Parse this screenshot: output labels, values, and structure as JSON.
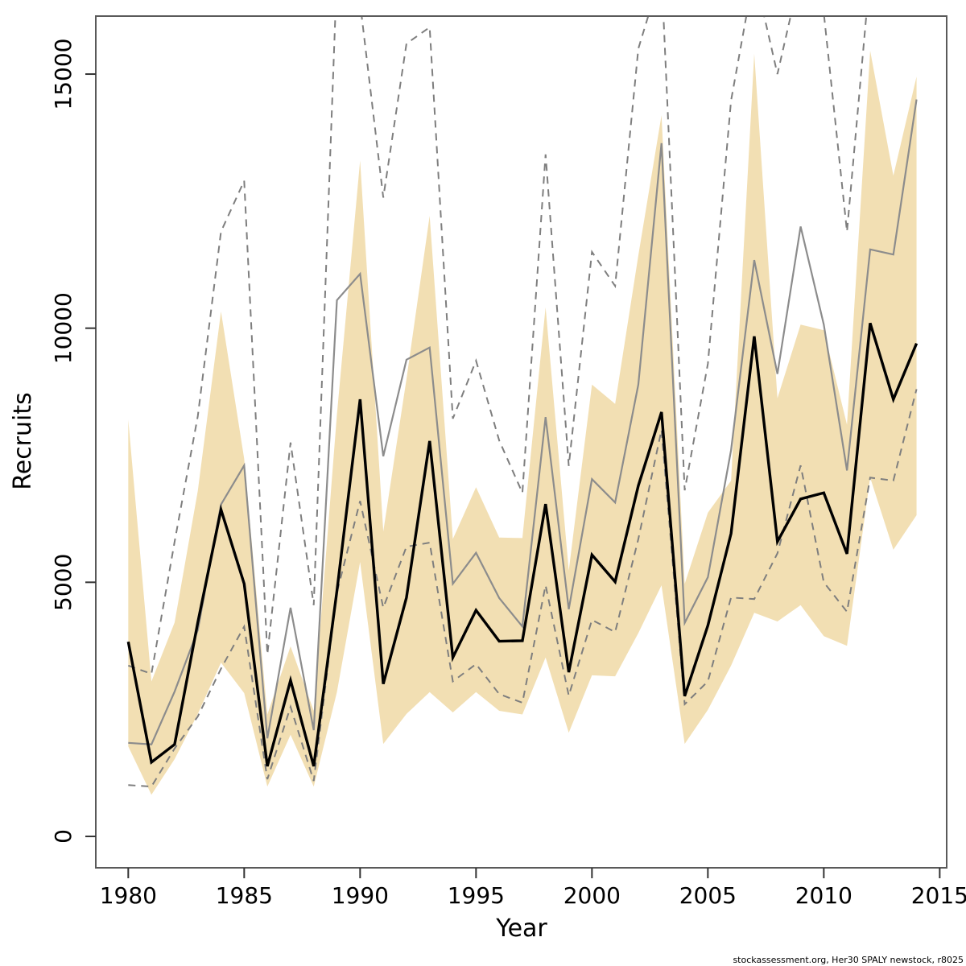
{
  "page": {
    "background": "#ffffff"
  },
  "footer": {
    "credit": "stockassessment.org, Her30 SPALY newstock, r8025"
  },
  "chart_data": {
    "type": "line",
    "title": "",
    "xlabel": "Year",
    "ylabel": "Recruits",
    "grid": false,
    "legend": "none",
    "xlim": [
      1978.6,
      2015.3
    ],
    "ylim": [
      -618,
      16141
    ],
    "x_ticks": [
      1980,
      1985,
      1990,
      1995,
      2000,
      2005,
      2010,
      2015
    ],
    "y_ticks": [
      0,
      5000,
      10000,
      15000
    ],
    "x": [
      1980,
      1981,
      1982,
      1983,
      1984,
      1985,
      1986,
      1987,
      1988,
      1989,
      1990,
      1991,
      1992,
      1993,
      1994,
      1995,
      1996,
      1997,
      1998,
      1999,
      2000,
      2001,
      2002,
      2003,
      2004,
      2005,
      2006,
      2007,
      2008,
      2009,
      2010,
      2011,
      2012,
      2013,
      2014
    ],
    "series": [
      {
        "name": "new-assessment-median",
        "style": "solid-black",
        "values": [
          3830,
          1460,
          1810,
          4210,
          6430,
          4970,
          1380,
          3070,
          1380,
          4830,
          8600,
          3000,
          4700,
          7780,
          3520,
          4450,
          3840,
          3850,
          6540,
          3230,
          5540,
          5010,
          6900,
          8350,
          2760,
          4150,
          5960,
          9840,
          5800,
          6640,
          6760,
          5560,
          10100,
          8600,
          9700
        ]
      },
      {
        "name": "old-assessment-median",
        "style": "solid-gray",
        "values": [
          1840,
          1810,
          2850,
          4060,
          6530,
          7300,
          1930,
          4500,
          2090,
          10550,
          11070,
          7480,
          9380,
          9620,
          4970,
          5580,
          4690,
          4130,
          8250,
          4470,
          7030,
          6570,
          8890,
          13640,
          4200,
          5100,
          7600,
          11340,
          9100,
          12000,
          10070,
          7200,
          11550,
          11450,
          14500
        ]
      },
      {
        "name": "old-assessment-lower-ci",
        "style": "dashed-gray",
        "values": [
          1010,
          980,
          1730,
          2360,
          3300,
          4130,
          1125,
          2550,
          1090,
          4800,
          6600,
          4500,
          5700,
          5780,
          3050,
          3390,
          2800,
          2630,
          4940,
          2770,
          4260,
          4020,
          5850,
          8000,
          2600,
          3050,
          4700,
          4670,
          5570,
          7300,
          5000,
          4420,
          7060,
          7000,
          8800
        ]
      },
      {
        "name": "old-assessment-upper-ci",
        "style": "dashed-gray",
        "values": [
          3360,
          3200,
          5800,
          8270,
          11900,
          12900,
          3580,
          7750,
          4550,
          17000,
          16400,
          12570,
          15600,
          15920,
          8220,
          9360,
          7790,
          6760,
          13420,
          7290,
          11500,
          10830,
          15500,
          17000,
          6810,
          9300,
          14480,
          17000,
          15000,
          17000,
          16200,
          11900,
          17000,
          16500,
          17000
        ]
      }
    ],
    "band": {
      "name": "new-assessment-ci-band",
      "lower": [
        1770,
        820,
        1520,
        2410,
        3420,
        2820,
        980,
        2000,
        980,
        2840,
        5400,
        1820,
        2410,
        2840,
        2440,
        2840,
        2470,
        2400,
        3520,
        2040,
        3170,
        3150,
        4000,
        4940,
        1820,
        2490,
        3360,
        4400,
        4230,
        4550,
        3940,
        3750,
        7060,
        5640,
        6320
      ],
      "upper": [
        8200,
        3050,
        4210,
        6800,
        10330,
        7430,
        2400,
        3740,
        2470,
        8300,
        13300,
        6000,
        9000,
        12210,
        5850,
        6870,
        5880,
        5870,
        10410,
        5230,
        8890,
        8510,
        11430,
        14190,
        4970,
        6370,
        7000,
        15400,
        8620,
        10070,
        9960,
        8100,
        15460,
        13000,
        14950
      ]
    },
    "colors": {
      "band_fill": "#f2dfb3",
      "median_new": "#000000",
      "median_old": "#8c8c8c",
      "ci_old_dashed": "#7e7e7e",
      "box_border": "#5a5a5a",
      "tick": "#333333",
      "text": "#000000"
    }
  }
}
